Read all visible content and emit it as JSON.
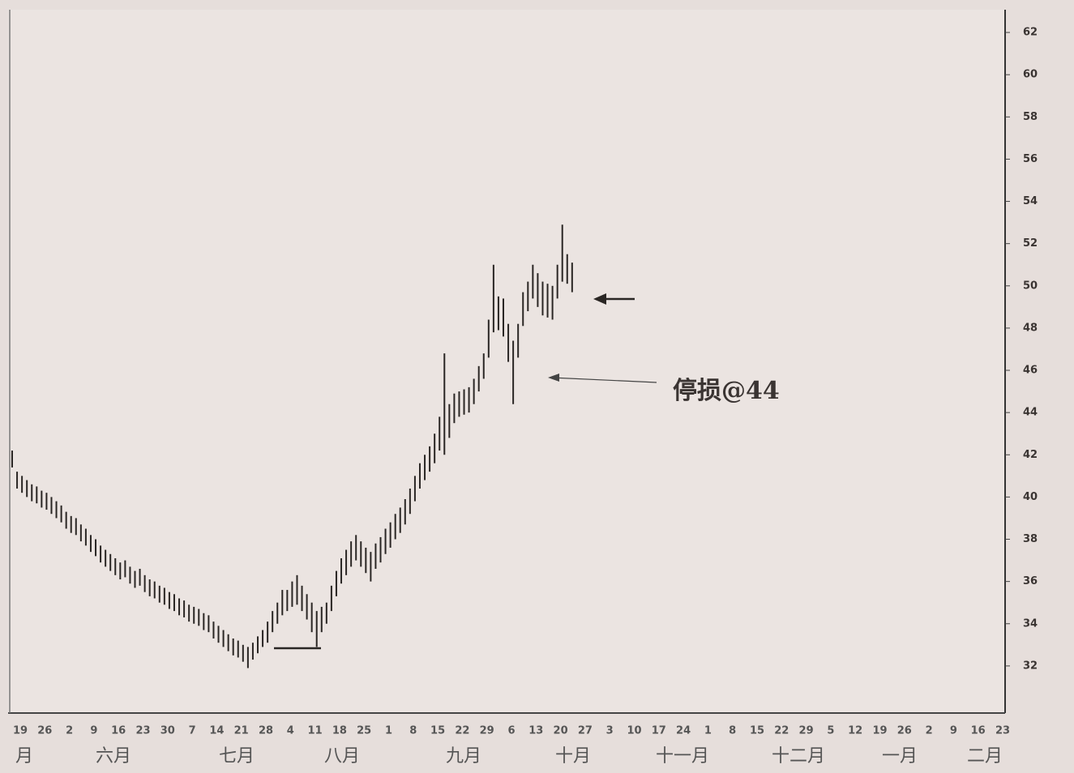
{
  "chart_data": {
    "type": "ohlc",
    "color": "#2a2624",
    "ylim": [
      30,
      63
    ],
    "yticks": [
      32,
      34,
      36,
      38,
      40,
      42,
      44,
      46,
      48,
      50,
      52,
      54,
      56,
      58,
      60,
      62
    ],
    "annotation": "停损@44",
    "week_labels": [
      "19",
      "26",
      "2",
      "9",
      "16",
      "23",
      "30",
      "7",
      "14",
      "21",
      "28",
      "4",
      "11",
      "18",
      "25",
      "1",
      "8",
      "15",
      "22",
      "29",
      "6",
      "13",
      "20",
      "27",
      "3",
      "10",
      "17",
      "24",
      "1",
      "8",
      "15",
      "22",
      "29",
      "5",
      "12",
      "19",
      "26",
      "2",
      "9",
      "16",
      "23"
    ],
    "month_labels": [
      "月",
      "六月",
      "七月",
      "八月",
      "九月",
      "十月",
      "十一月",
      "十二月",
      "一月",
      "二月"
    ],
    "high": [
      42.2,
      41.2,
      41.0,
      40.8,
      40.6,
      40.5,
      40.3,
      40.2,
      40.0,
      39.8,
      39.6,
      39.3,
      39.1,
      39.0,
      38.7,
      38.5,
      38.2,
      38.0,
      37.7,
      37.5,
      37.3,
      37.1,
      36.9,
      37.0,
      36.7,
      36.5,
      36.6,
      36.3,
      36.1,
      36.0,
      35.8,
      35.7,
      35.5,
      35.4,
      35.2,
      35.1,
      34.9,
      34.8,
      34.7,
      34.5,
      34.4,
      34.1,
      33.9,
      33.7,
      33.5,
      33.3,
      33.2,
      33.0,
      32.9,
      33.1,
      33.4,
      33.7,
      34.1,
      34.6,
      35.0,
      35.6,
      35.6,
      36.0,
      36.3,
      35.8,
      35.4,
      35.0,
      34.6,
      34.8,
      35.0,
      35.8,
      36.5,
      37.1,
      37.5,
      37.9,
      38.2,
      37.9,
      37.6,
      37.4,
      37.8,
      38.1,
      38.5,
      38.8,
      39.2,
      39.5,
      39.9,
      40.4,
      41.0,
      41.6,
      42.0,
      42.4,
      43.0,
      43.8,
      46.8,
      44.4,
      44.9,
      45.0,
      45.1,
      45.2,
      45.6,
      46.2,
      46.8,
      48.4,
      51.0,
      49.5,
      49.4,
      48.2,
      47.4,
      48.2,
      49.7,
      50.2,
      51.0,
      50.6,
      50.2,
      50.1,
      50.0,
      51.0,
      52.9,
      51.5,
      51.1
    ],
    "low": [
      41.4,
      40.4,
      40.2,
      40.0,
      39.8,
      39.7,
      39.5,
      39.4,
      39.2,
      39.0,
      38.8,
      38.5,
      38.3,
      38.2,
      37.9,
      37.7,
      37.4,
      37.2,
      36.9,
      36.7,
      36.5,
      36.3,
      36.1,
      36.2,
      35.9,
      35.7,
      35.8,
      35.5,
      35.3,
      35.2,
      35.0,
      34.9,
      34.7,
      34.6,
      34.4,
      34.3,
      34.1,
      34.0,
      33.9,
      33.7,
      33.6,
      33.3,
      33.1,
      32.9,
      32.7,
      32.5,
      32.4,
      32.2,
      31.9,
      32.3,
      32.6,
      32.9,
      33.1,
      33.6,
      34.0,
      34.4,
      34.6,
      34.8,
      34.9,
      34.6,
      34.2,
      33.6,
      32.9,
      33.6,
      34.0,
      34.6,
      35.3,
      35.9,
      36.3,
      36.7,
      37.0,
      36.7,
      36.4,
      36.0,
      36.6,
      36.9,
      37.3,
      37.6,
      38.0,
      38.3,
      38.7,
      39.2,
      39.8,
      40.4,
      40.8,
      41.2,
      41.6,
      42.2,
      42.0,
      42.8,
      43.5,
      43.8,
      43.9,
      44.0,
      44.4,
      45.0,
      45.6,
      46.6,
      47.8,
      47.9,
      47.6,
      46.4,
      44.4,
      46.6,
      48.1,
      48.8,
      49.4,
      49.0,
      48.6,
      48.5,
      48.4,
      49.4,
      50.2,
      50.1,
      49.7
    ]
  }
}
